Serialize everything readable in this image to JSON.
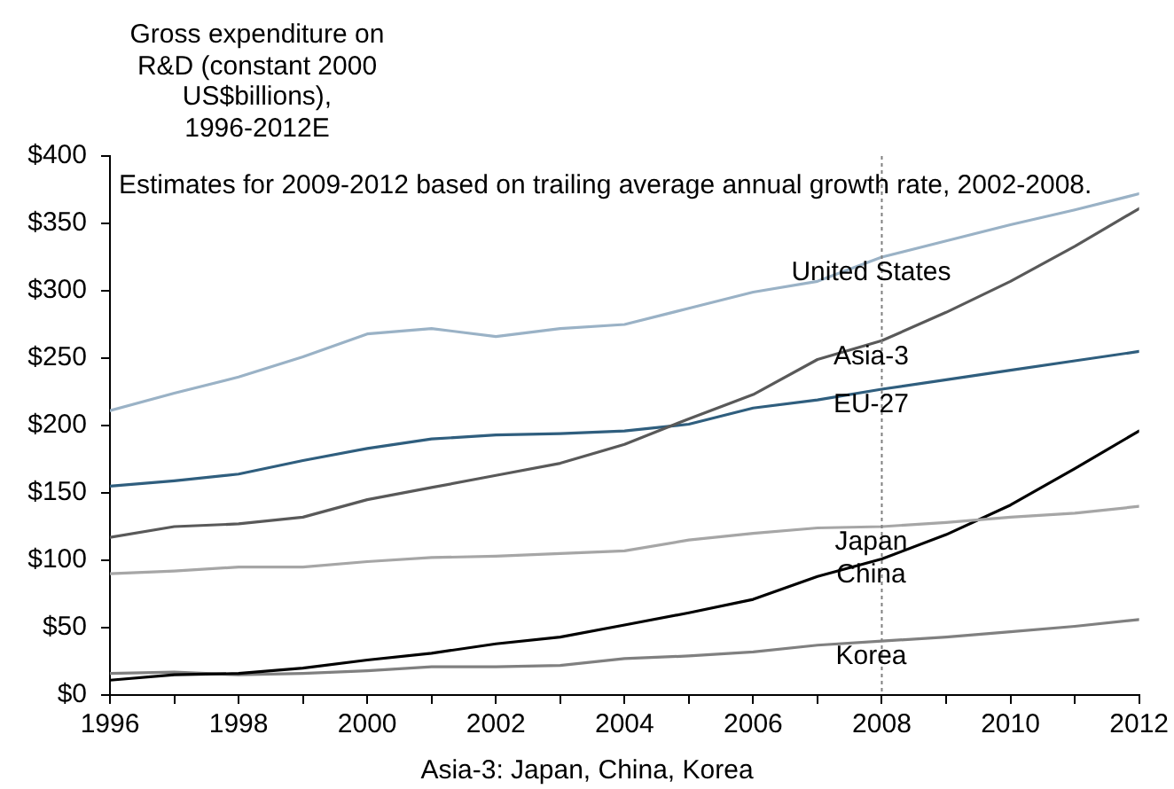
{
  "chart_data": {
    "type": "line",
    "ylabel": "Gross expenditure on R&D (constant 2000 US$billions), 1996-2012E",
    "annotations": [
      "Estimates for 2009-2012 based on trailing average annual growth rate, 2002-2008.",
      "Asia-3: Japan, China, Korea"
    ],
    "x": [
      1996,
      1997,
      1998,
      1999,
      2000,
      2001,
      2002,
      2003,
      2004,
      2005,
      2006,
      2007,
      2008,
      2009,
      2010,
      2011,
      2012
    ],
    "xlim": [
      1996,
      2012
    ],
    "xticks": [
      1996,
      {
        "value": 1997,
        "label": null
      },
      1998,
      {
        "value": 1999,
        "label": null
      },
      2000,
      {
        "value": 2001,
        "label": null
      },
      2002,
      {
        "value": 2003,
        "label": null
      },
      2004,
      {
        "value": 2005,
        "label": null
      },
      2006,
      {
        "value": 2007,
        "label": null
      },
      2008,
      {
        "value": 2009,
        "label": null
      },
      2010,
      {
        "value": 2011,
        "label": null
      },
      2012
    ],
    "ylim": [
      0,
      400
    ],
    "yticks": [
      {
        "value": 0,
        "label": "$0"
      },
      {
        "value": 50,
        "label": "$50"
      },
      {
        "value": 100,
        "label": "$100"
      },
      {
        "value": 150,
        "label": "$150"
      },
      {
        "value": 200,
        "label": "$200"
      },
      {
        "value": 250,
        "label": "$250"
      },
      {
        "value": 300,
        "label": "$300"
      },
      {
        "value": 350,
        "label": "$350"
      },
      {
        "value": 400,
        "label": "$400"
      }
    ],
    "series": [
      {
        "name": "United States",
        "color": "#9ab2c6",
        "values": [
          211,
          224,
          236,
          251,
          268,
          272,
          266,
          272,
          275,
          287,
          299,
          307,
          325,
          337,
          349,
          360,
          372
        ]
      },
      {
        "name": "Asia-3",
        "color": "#595959",
        "values": [
          117,
          125,
          127,
          132,
          145,
          154,
          163,
          172,
          186,
          205,
          223,
          249,
          263,
          284,
          307,
          333,
          361
        ]
      },
      {
        "name": "EU-27",
        "color": "#2f5e7e",
        "values": [
          155,
          159,
          164,
          174,
          183,
          190,
          193,
          194,
          196,
          201,
          213,
          219,
          227,
          234,
          241,
          248,
          255
        ]
      },
      {
        "name": "Japan",
        "color": "#a6a6a6",
        "values": [
          90,
          92,
          95,
          95,
          99,
          102,
          103,
          105,
          107,
          115,
          120,
          124,
          125,
          128,
          132,
          135,
          140
        ]
      },
      {
        "name": "China",
        "color": "#000000",
        "values": [
          11,
          15,
          16,
          20,
          26,
          31,
          38,
          43,
          52,
          61,
          71,
          88,
          101,
          119,
          141,
          168,
          196
        ]
      },
      {
        "name": "Korea",
        "color": "#808080",
        "values": [
          16,
          17,
          15,
          16,
          18,
          21,
          21,
          22,
          27,
          29,
          32,
          37,
          40,
          43,
          47,
          51,
          56
        ]
      }
    ],
    "ref_lines": [
      {
        "axis": "x",
        "value": 2008,
        "color": "#808080",
        "line_style": "dotted"
      }
    ]
  }
}
